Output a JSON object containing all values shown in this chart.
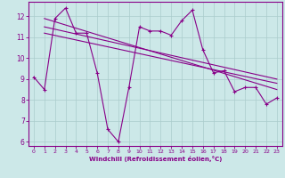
{
  "xlabel": "Windchill (Refroidissement éolien,°C)",
  "background_color": "#cce8e8",
  "line_color": "#880088",
  "grid_color": "#aacccc",
  "xlim": [
    -0.5,
    23.5
  ],
  "ylim": [
    5.8,
    12.7
  ],
  "xticks": [
    0,
    1,
    2,
    3,
    4,
    5,
    6,
    7,
    8,
    9,
    10,
    11,
    12,
    13,
    14,
    15,
    16,
    17,
    18,
    19,
    20,
    21,
    22,
    23
  ],
  "yticks": [
    6,
    7,
    8,
    9,
    10,
    11,
    12
  ],
  "series1": [
    9.1,
    8.5,
    11.9,
    12.4,
    11.2,
    11.2,
    9.3,
    6.6,
    6.0,
    8.6,
    11.5,
    11.3,
    11.3,
    11.1,
    11.8,
    12.3,
    10.4,
    9.3,
    9.4,
    8.4,
    8.6,
    8.6,
    7.8,
    8.1
  ],
  "trend1_x": [
    1,
    23
  ],
  "trend1_y": [
    11.9,
    8.5
  ],
  "trend2_x": [
    1,
    23
  ],
  "trend2_y": [
    11.5,
    9.0
  ],
  "trend3_x": [
    1,
    23
  ],
  "trend3_y": [
    11.2,
    8.8
  ]
}
